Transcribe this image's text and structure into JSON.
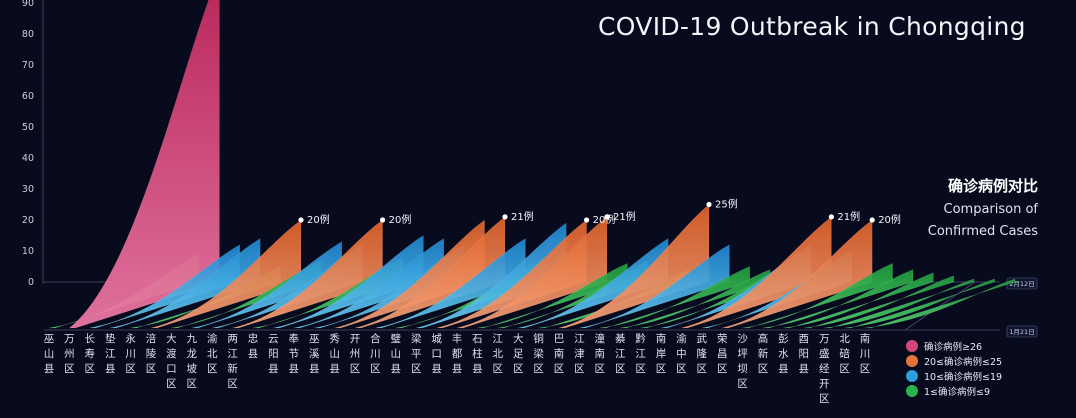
{
  "title": "COVID-19 Outbreak in Chongqing",
  "subtitle_cn": "确诊病例对比",
  "subtitle_en_line1": "Comparison of",
  "subtitle_en_line2": "Confirmed Cases",
  "legend": [
    {
      "label": "确诊病例≥26",
      "color": "#d6457a"
    },
    {
      "label": "20≤确诊病例≤25",
      "color": "#e8733a"
    },
    {
      "label": "10≤确诊病例≤19",
      "color": "#2f9fe0"
    },
    {
      "label": "1≤确诊病例≤9",
      "color": "#2bb24c"
    }
  ],
  "chart_data": {
    "type": "area",
    "y_ticks": [
      0,
      10,
      20,
      30,
      40,
      50,
      60,
      70,
      80,
      90
    ],
    "ylim": [
      0,
      90
    ],
    "depth_axis_labels": [
      "1月21日",
      "2月12日"
    ],
    "districts": [
      {
        "name": "巫山县",
        "value": 9
      },
      {
        "name": "万州区",
        "value": 100
      },
      {
        "name": "长寿区",
        "value": 12
      },
      {
        "name": "垫江县",
        "value": 14
      },
      {
        "name": "永川区",
        "value": 5
      },
      {
        "name": "涪陵区",
        "value": 20
      },
      {
        "name": "大渡口区",
        "value": 7
      },
      {
        "name": "九龙坡区",
        "value": 13
      },
      {
        "name": "渝北区",
        "value": 12
      },
      {
        "name": "两江新区",
        "value": 20
      },
      {
        "name": "忠县",
        "value": 8
      },
      {
        "name": "云阳县",
        "value": 15
      },
      {
        "name": "奉节县",
        "value": 14
      },
      {
        "name": "巫溪县",
        "value": 12
      },
      {
        "name": "秀山县",
        "value": 20
      },
      {
        "name": "开州区",
        "value": 21
      },
      {
        "name": "合川区",
        "value": 14
      },
      {
        "name": "璧山县",
        "value": 8
      },
      {
        "name": "梁平区",
        "value": 19
      },
      {
        "name": "城口县",
        "value": 20
      },
      {
        "name": "丰都县",
        "value": 21
      },
      {
        "name": "石柱县",
        "value": 6
      },
      {
        "name": "江北区",
        "value": 7
      },
      {
        "name": "大足区",
        "value": 14
      },
      {
        "name": "铜梁区",
        "value": 4
      },
      {
        "name": "巴南区",
        "value": 25
      },
      {
        "name": "江津区",
        "value": 12
      },
      {
        "name": "潼南区",
        "value": 5
      },
      {
        "name": "綦江区",
        "value": 4
      },
      {
        "name": "黔江区",
        "value": 6
      },
      {
        "name": "南岸区",
        "value": 12
      },
      {
        "name": "渝中区",
        "value": 21
      },
      {
        "name": "武隆区",
        "value": 10
      },
      {
        "name": "荣昌区",
        "value": 20
      },
      {
        "name": "沙坪坝区",
        "value": 6
      },
      {
        "name": "高新区",
        "value": 4
      },
      {
        "name": "彭水县",
        "value": 3
      },
      {
        "name": "酉阳县",
        "value": 2
      },
      {
        "name": "万盛经开区",
        "value": 1
      },
      {
        "name": "北碚区",
        "value": 1
      },
      {
        "name": "南川区",
        "value": 1
      }
    ],
    "annotations": [
      {
        "district": "涪陵区",
        "label": "20例"
      },
      {
        "district": "两江新区",
        "label": "20例"
      },
      {
        "district": "开州区",
        "label": "21例"
      },
      {
        "district": "城口县",
        "label": "20例"
      },
      {
        "district": "丰都县",
        "label": "21例"
      },
      {
        "district": "巴南区",
        "label": "25例"
      },
      {
        "district": "渝中区",
        "label": "21例"
      },
      {
        "district": "荣昌区",
        "label": "20例"
      }
    ]
  }
}
